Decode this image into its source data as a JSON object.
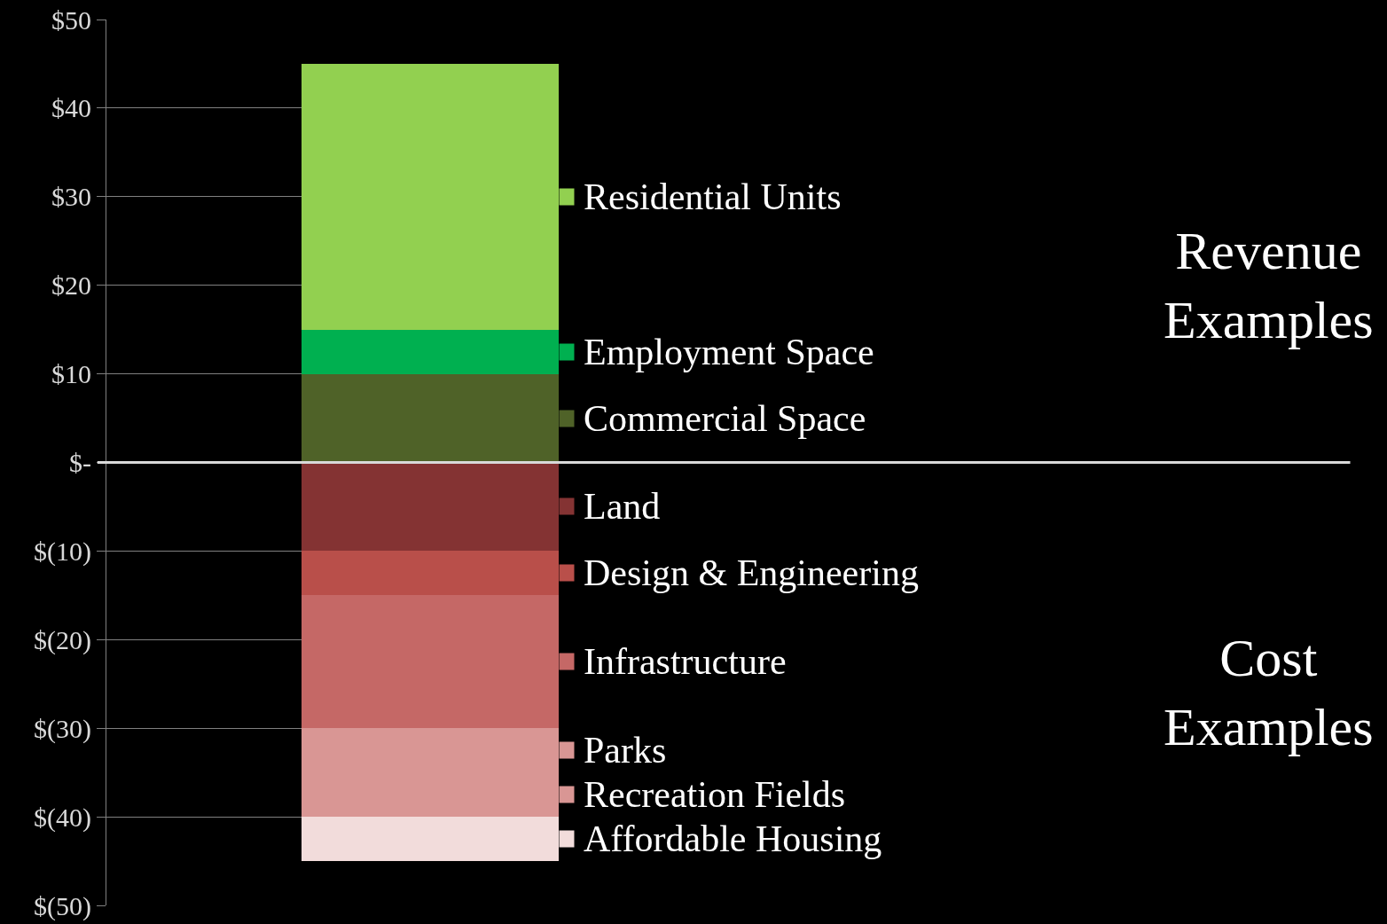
{
  "chart_data": {
    "type": "bar",
    "stacked": true,
    "categories": [
      null
    ],
    "series": [
      {
        "name": "Commercial Space",
        "color": "#4f6228",
        "values": [
          10
        ]
      },
      {
        "name": "Employment Space",
        "color": "#00b050",
        "values": [
          5
        ]
      },
      {
        "name": "Residential Units",
        "color": "#92d050",
        "values": [
          30
        ]
      },
      {
        "name": "Land",
        "color": "#843333",
        "values": [
          -10
        ]
      },
      {
        "name": "Design & Engineering",
        "color": "#b94f4a",
        "values": [
          -5
        ]
      },
      {
        "name": "Infrastructure",
        "color": "#c56866",
        "values": [
          -15
        ]
      },
      {
        "name": "Parks",
        "color": "#d99694",
        "values": [
          -5
        ]
      },
      {
        "name": "Recreation Fields",
        "color": "#d99694",
        "values": [
          -5
        ]
      },
      {
        "name": "Affordable Housing",
        "color": "#f2dcdb",
        "values": [
          -5
        ]
      }
    ],
    "ylim": [
      -50,
      50
    ],
    "yticks": [
      {
        "value": 50,
        "label": "$50"
      },
      {
        "value": 40,
        "label": "$40"
      },
      {
        "value": 30,
        "label": "$30"
      },
      {
        "value": 20,
        "label": "$20"
      },
      {
        "value": 10,
        "label": "$10"
      },
      {
        "value": 0,
        "label": "$-"
      },
      {
        "value": -10,
        "label": "$(10)"
      },
      {
        "value": -20,
        "label": "$(20)"
      },
      {
        "value": -30,
        "label": "$(30)"
      },
      {
        "value": -40,
        "label": "$(40)"
      },
      {
        "value": -50,
        "label": "$(50)"
      }
    ],
    "grid": "y",
    "legend": "right",
    "tick_labels": "y",
    "ref_lines": [
      {
        "axis": "y",
        "value": 0,
        "color": "#d9d9d9"
      }
    ],
    "annotations": [
      "Revenue\nExamples",
      "Cost\nExamples"
    ]
  }
}
